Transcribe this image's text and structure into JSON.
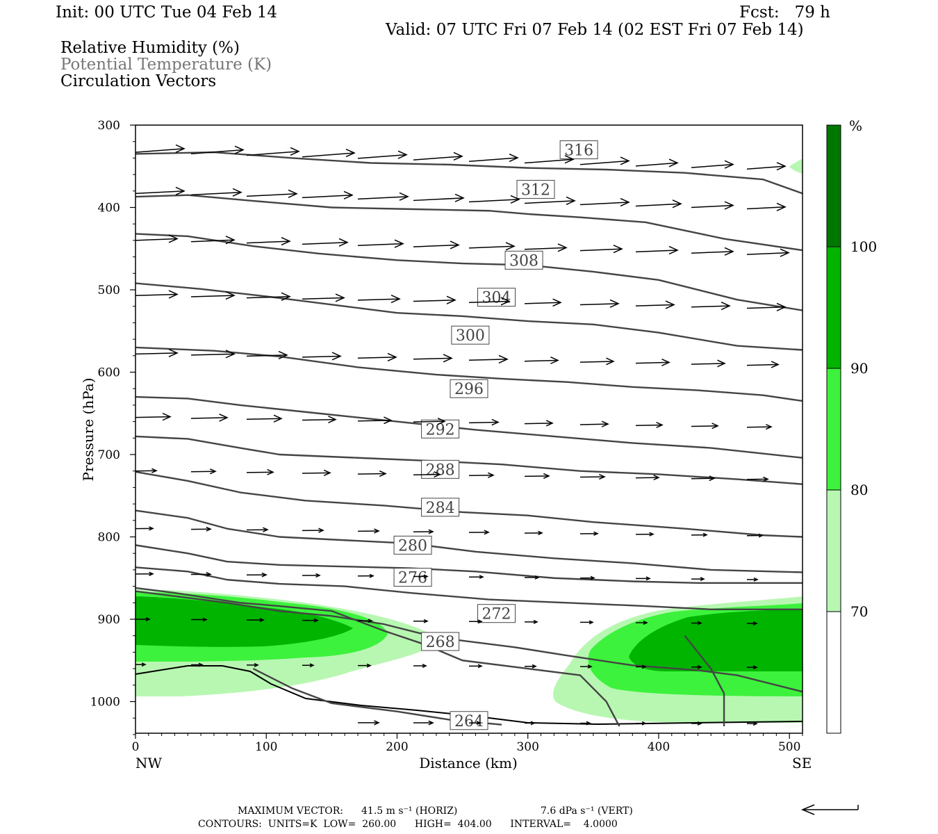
{
  "header": {
    "init": "Init: 00 UTC Tue 04 Feb 14",
    "fcst": "Fcst:   79 h",
    "valid": "Valid: 07 UTC Fri 07 Feb 14 (02 EST Fri 07 Feb 14)"
  },
  "legend": {
    "line1": "Relative Humidity (%)",
    "line2": "Potential Temperature (K)",
    "line3": "Circulation Vectors"
  },
  "footer": {
    "max_vector_label": "MAXIMUM VECTOR:",
    "horiz": "41.5 m s⁻¹ (HORIZ)",
    "vert": "7.6 dPa s⁻¹ (VERT)",
    "contours": "CONTOURS:  UNITS=K  LOW=  260.00      HIGH=  404.00      INTERVAL=    4.0000"
  },
  "colors": {
    "rh70": "#b8f7b2",
    "rh80": "#3cf23c",
    "rh90": "#00b400",
    "rh100": "#007800",
    "theta": "#444444",
    "vector": "#000000"
  },
  "chart_data": {
    "type": "cross-section",
    "title": "",
    "xlabel": "Distance (km)",
    "ylabel": "Pressure (hPa)",
    "xlim": [
      0,
      510
    ],
    "ylim": [
      300,
      1040
    ],
    "y_scale": "linear, inverted",
    "x_ticks": [
      0,
      100,
      200,
      300,
      400,
      500
    ],
    "y_ticks": [
      300,
      400,
      500,
      600,
      700,
      800,
      900,
      1000
    ],
    "x_end_labels": {
      "left": "NW",
      "right": "SE"
    },
    "colorbar": {
      "unit": "%",
      "levels": [
        70,
        80,
        90,
        100
      ]
    },
    "theta_contours": [
      {
        "label": "316",
        "label_at": [
          339,
          330
        ],
        "points": [
          [
            0,
            335
          ],
          [
            60,
            333
          ],
          [
            120,
            340
          ],
          [
            180,
            346
          ],
          [
            240,
            348
          ],
          [
            300,
            352
          ],
          [
            360,
            354
          ],
          [
            420,
            358
          ],
          [
            480,
            366
          ],
          [
            510,
            383
          ]
        ]
      },
      {
        "label": "312",
        "label_at": [
          306,
          378
        ],
        "points": [
          [
            0,
            387
          ],
          [
            40,
            385
          ],
          [
            90,
            392
          ],
          [
            150,
            400
          ],
          [
            210,
            402
          ],
          [
            270,
            404
          ],
          [
            300,
            408
          ],
          [
            340,
            412
          ],
          [
            390,
            418
          ],
          [
            450,
            438
          ],
          [
            510,
            452
          ]
        ]
      },
      {
        "label": "308",
        "label_at": [
          297,
          464
        ],
        "points": [
          [
            0,
            432
          ],
          [
            40,
            435
          ],
          [
            90,
            447
          ],
          [
            140,
            456
          ],
          [
            200,
            464
          ],
          [
            250,
            468
          ],
          [
            300,
            470
          ],
          [
            350,
            478
          ],
          [
            400,
            488
          ],
          [
            460,
            512
          ],
          [
            510,
            525
          ]
        ]
      },
      {
        "label": "304",
        "label_at": [
          276,
          509
        ],
        "points": [
          [
            0,
            492
          ],
          [
            50,
            499
          ],
          [
            100,
            508
          ],
          [
            150,
            518
          ],
          [
            200,
            528
          ],
          [
            250,
            532
          ],
          [
            300,
            538
          ],
          [
            350,
            542
          ],
          [
            400,
            552
          ],
          [
            460,
            568
          ],
          [
            510,
            573
          ]
        ]
      },
      {
        "label": "300",
        "label_at": [
          256,
          555
        ],
        "points": [
          [
            0,
            570
          ],
          [
            60,
            574
          ],
          [
            110,
            581
          ],
          [
            170,
            594
          ],
          [
            230,
            603
          ],
          [
            280,
            608
          ],
          [
            330,
            612
          ],
          [
            380,
            618
          ],
          [
            430,
            622
          ],
          [
            480,
            628
          ],
          [
            510,
            635
          ]
        ]
      },
      {
        "label": "296",
        "label_at": [
          255,
          620
        ],
        "points": [
          [
            0,
            630
          ],
          [
            40,
            632
          ],
          [
            80,
            640
          ],
          [
            140,
            650
          ],
          [
            200,
            660
          ],
          [
            260,
            670
          ],
          [
            320,
            678
          ],
          [
            380,
            686
          ],
          [
            440,
            692
          ],
          [
            510,
            704
          ]
        ]
      },
      {
        "label": "292",
        "label_at": [
          233,
          669
        ],
        "points": [
          [
            0,
            678
          ],
          [
            40,
            681
          ],
          [
            80,
            692
          ],
          [
            110,
            700
          ],
          [
            170,
            704
          ],
          [
            230,
            708
          ],
          [
            280,
            712
          ],
          [
            340,
            720
          ],
          [
            400,
            724
          ],
          [
            460,
            730
          ],
          [
            510,
            736
          ]
        ]
      },
      {
        "label": "288",
        "label_at": [
          233,
          718
        ],
        "points": [
          [
            0,
            721
          ],
          [
            40,
            732
          ],
          [
            80,
            746
          ],
          [
            130,
            756
          ],
          [
            190,
            762
          ],
          [
            250,
            770
          ],
          [
            300,
            774
          ],
          [
            350,
            782
          ],
          [
            420,
            790
          ],
          [
            480,
            798
          ],
          [
            510,
            800
          ]
        ]
      },
      {
        "label": "284",
        "label_at": [
          233,
          764
        ],
        "points": [
          [
            0,
            768
          ],
          [
            40,
            777
          ],
          [
            70,
            790
          ],
          [
            110,
            800
          ],
          [
            160,
            804
          ],
          [
            210,
            808
          ],
          [
            260,
            818
          ],
          [
            320,
            826
          ],
          [
            380,
            832
          ],
          [
            440,
            840
          ],
          [
            510,
            843
          ]
        ]
      },
      {
        "label": "280",
        "label_at": [
          212,
          810
        ],
        "points": [
          [
            0,
            810
          ],
          [
            40,
            820
          ],
          [
            70,
            830
          ],
          [
            110,
            834
          ],
          [
            160,
            836
          ],
          [
            210,
            838
          ],
          [
            260,
            842
          ],
          [
            320,
            850
          ],
          [
            380,
            854
          ],
          [
            430,
            856
          ],
          [
            510,
            856
          ]
        ]
      },
      {
        "label": "276",
        "label_at": [
          212,
          849
        ],
        "points": [
          [
            0,
            837
          ],
          [
            40,
            842
          ],
          [
            70,
            852
          ],
          [
            110,
            857
          ],
          [
            160,
            860
          ],
          [
            210,
            868
          ],
          [
            270,
            876
          ],
          [
            330,
            880
          ],
          [
            390,
            884
          ],
          [
            440,
            888
          ],
          [
            510,
            888
          ]
        ]
      },
      {
        "label": "272",
        "label_at": [
          276,
          893
        ],
        "points": [
          [
            0,
            866
          ],
          [
            30,
            872
          ],
          [
            70,
            880
          ],
          [
            110,
            890
          ],
          [
            150,
            896
          ],
          [
            190,
            906
          ],
          [
            230,
            922
          ],
          [
            290,
            934
          ],
          [
            330,
            944
          ],
          [
            380,
            956
          ],
          [
            430,
            962
          ],
          [
            460,
            968
          ],
          [
            510,
            988
          ]
        ]
      },
      {
        "label": "268",
        "label_at": [
          233,
          927
        ],
        "points": [
          [
            0,
            862
          ],
          [
            30,
            868
          ],
          [
            80,
            880
          ],
          [
            110,
            884
          ],
          [
            150,
            890
          ],
          [
            190,
            914
          ],
          [
            220,
            930
          ],
          [
            250,
            950
          ],
          [
            300,
            960
          ],
          [
            340,
            968
          ],
          [
            360,
            1000
          ],
          [
            370,
            1030
          ]
        ]
      },
      {
        "label": "264",
        "label_at": [
          255,
          1023
        ],
        "points": [
          [
            90,
            960
          ],
          [
            120,
            984
          ],
          [
            150,
            1002
          ],
          [
            200,
            1012
          ],
          [
            240,
            1022
          ],
          [
            280,
            1028
          ]
        ]
      },
      {
        "label": "",
        "label_at": null,
        "points": [
          [
            420,
            920
          ],
          [
            440,
            960
          ],
          [
            450,
            990
          ],
          [
            450,
            1030
          ]
        ]
      }
    ]
  }
}
